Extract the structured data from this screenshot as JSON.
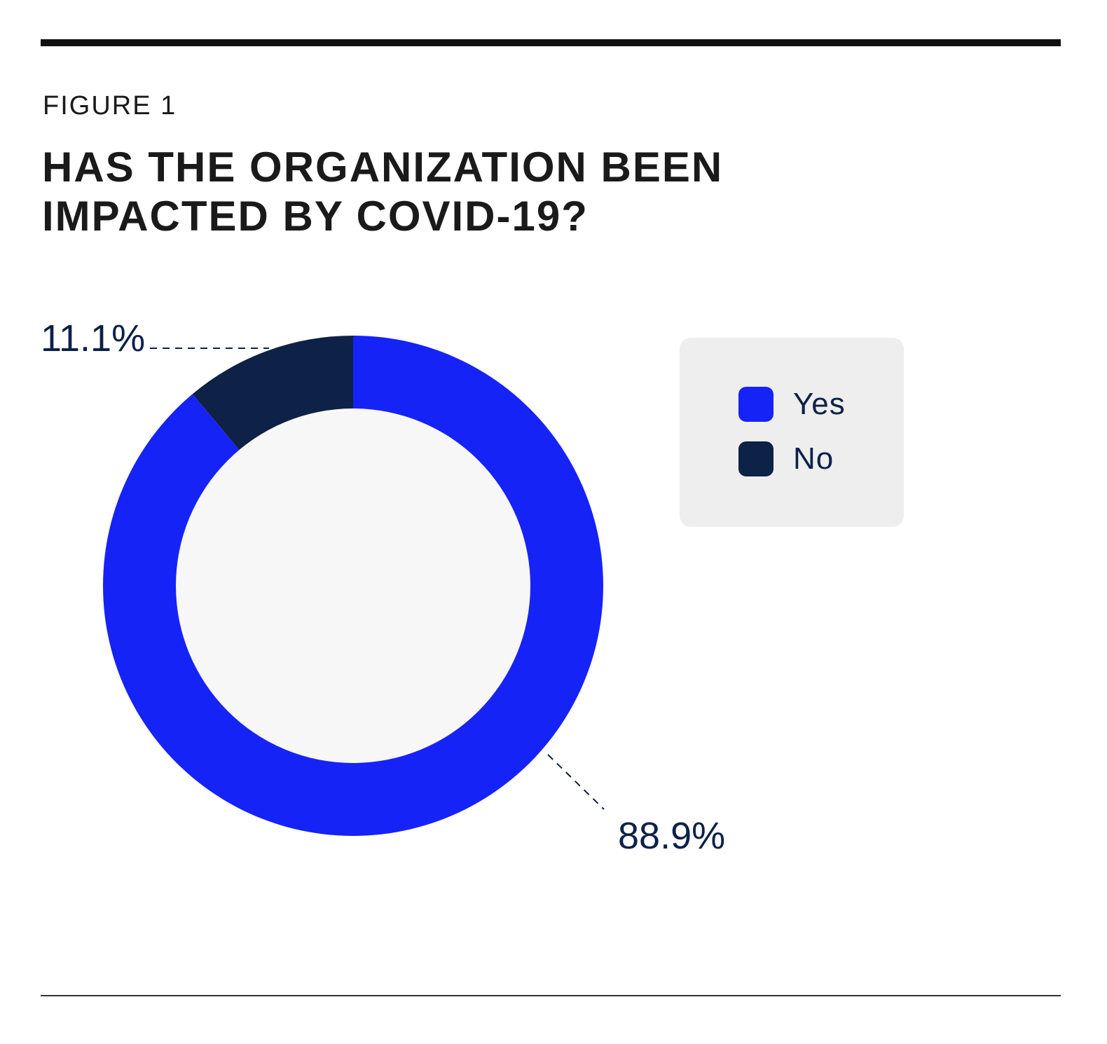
{
  "figure_label": "FIGURE 1",
  "title_lines": [
    "HAS THE ORGANIZATION BEEN",
    "IMPACTED BY COVID-19?"
  ],
  "colors": {
    "yes": "#1623f7",
    "no": "#0e2147",
    "hole": "#f7f7f7",
    "legend_bg": "#eeeeee",
    "label_text": "#0e2147"
  },
  "chart_data": {
    "type": "pie",
    "style": "donut",
    "title": "HAS THE ORGANIZATION BEEN IMPACTED BY COVID-19?",
    "categories": [
      "Yes",
      "No"
    ],
    "values": [
      88.9,
      11.1
    ],
    "value_labels": [
      "88.9%",
      "11.1%"
    ],
    "legend": {
      "placement": "right",
      "entries": [
        "Yes",
        "No"
      ]
    }
  }
}
